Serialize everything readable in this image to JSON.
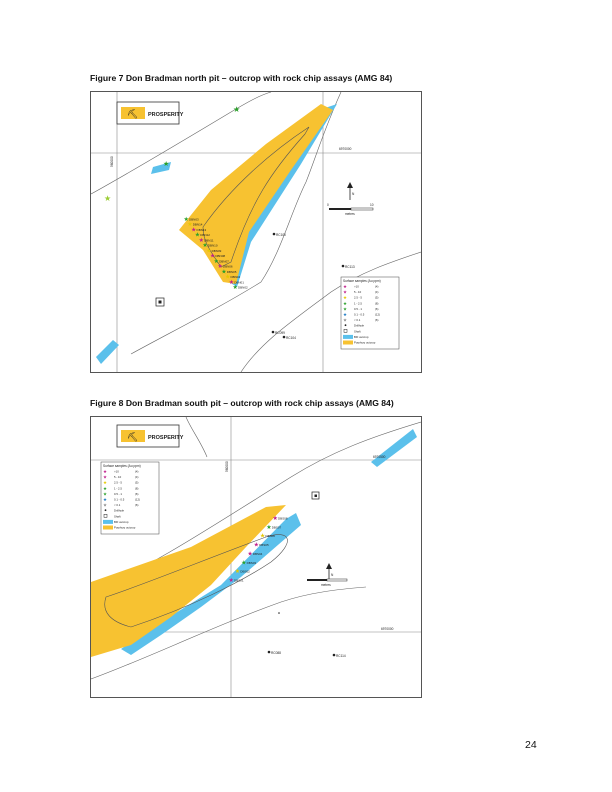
{
  "figure7": {
    "caption": "Figure 7 Don Bradman north pit – outcrop with rock chip assays (AMG 84)",
    "logo_text": "PROSPERITY",
    "grid_labels": {
      "northing": "6970000",
      "easting": "560000"
    },
    "scale_labels": [
      "0",
      "10"
    ],
    "scale_unit": "metres",
    "north_label": "N",
    "points": [
      {
        "label": "RC100"
      },
      {
        "label": "RC113"
      },
      {
        "label": "RC099"
      },
      {
        "label": "RC104"
      }
    ],
    "sample_labels": [
      "DBN03",
      "DBN14",
      "DBN13",
      "DBN12",
      "DBN11",
      "DBN10",
      "DBN09",
      "DBN08",
      "DBN07",
      "DBN06",
      "DBN05",
      "DBN04",
      "DBN01",
      "DBN02"
    ],
    "legend": {
      "title": "Surface samples (Au ppm)",
      "items": [
        {
          "label": ">10",
          "count": "(4)",
          "color": "#c0208c"
        },
        {
          "label": "5 - 10",
          "count": "(4)",
          "color": "#c0208c"
        },
        {
          "label": "2.5 - 5",
          "count": "(5)",
          "color": "#e6c800"
        },
        {
          "label": "1 - 2.5",
          "count": "(8)",
          "color": "#2aa02a"
        },
        {
          "label": "0.5 - 1",
          "count": "(6)",
          "color": "#2aa02a"
        },
        {
          "label": "0.1 - 0.5",
          "count": "(12)",
          "color": "#1a78c2"
        },
        {
          "label": "< 0.1",
          "count": "(6)",
          "color": "#888888"
        },
        {
          "label": "Drillhole",
          "count": "",
          "color": "#222222"
        },
        {
          "label": "Shaft",
          "count": "",
          "color": "#222222"
        },
        {
          "label": "BIF outcrop",
          "count": "",
          "color": "#5bc0eb"
        },
        {
          "label": "Porphyry outcrop",
          "count": "",
          "color": "#f7c231"
        }
      ]
    }
  },
  "figure8": {
    "caption": "Figure 8 Don Bradman south pit – outcrop with rock chip assays (AMG 84)",
    "logo_text": "PROSPERITY",
    "grid_labels": {
      "northing_top": "6970500",
      "northing_bottom": "6970000",
      "easting": "560000"
    },
    "scale_unit": "metres",
    "north_label": "N",
    "points": [
      {
        "label": "RC088"
      },
      {
        "label": "RC114"
      }
    ],
    "sample_labels": [
      "DBS08",
      "DBS07",
      "DBS06",
      "DBS05",
      "DBS04",
      "DBS03",
      "DBS02",
      "DBS01"
    ],
    "legend": {
      "title": "Surface samples (Au ppm)",
      "items": [
        {
          "label": ">10",
          "count": "(4)",
          "color": "#c0208c"
        },
        {
          "label": "5 - 10",
          "count": "(4)",
          "color": "#c0208c"
        },
        {
          "label": "2.5 - 5",
          "count": "(5)",
          "color": "#e6c800"
        },
        {
          "label": "1 - 2.5",
          "count": "(8)",
          "color": "#2aa02a"
        },
        {
          "label": "0.5 - 1",
          "count": "(6)",
          "color": "#2aa02a"
        },
        {
          "label": "0.1 - 0.5",
          "count": "(12)",
          "color": "#1a78c2"
        },
        {
          "label": "< 0.1",
          "count": "(6)",
          "color": "#888888"
        },
        {
          "label": "Drillhole",
          "count": "",
          "color": "#222222"
        },
        {
          "label": "Shaft",
          "count": "",
          "color": "#222222"
        },
        {
          "label": "BIF outcrop",
          "count": "",
          "color": "#5bc0eb"
        },
        {
          "label": "Porphyry outcrop",
          "count": "",
          "color": "#f7c231"
        }
      ]
    }
  },
  "page_number": "24",
  "colors": {
    "bif": "#5bc0eb",
    "porphyry": "#f7c231",
    "magenta": "#c0208c",
    "green": "#2aa02a",
    "yellow": "#e6c800"
  }
}
